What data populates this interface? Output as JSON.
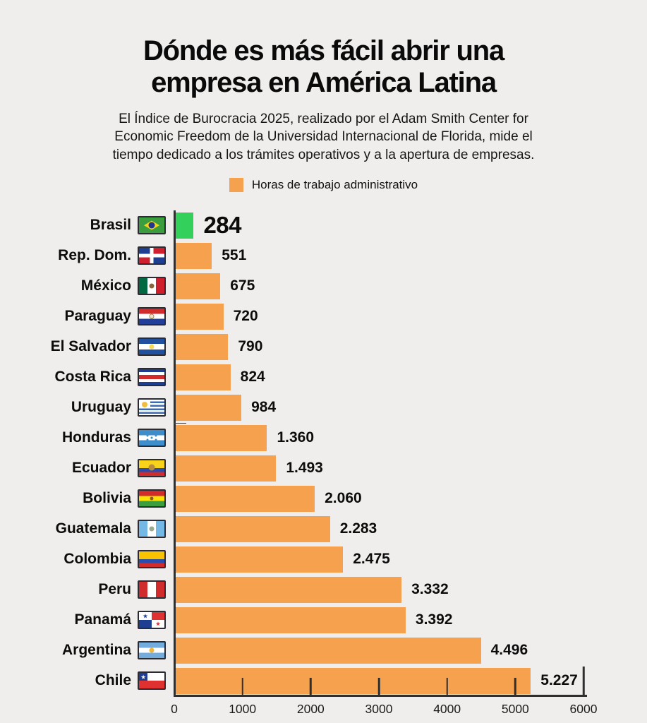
{
  "header": {
    "title": "Dónde es más fácil abrir una empresa en América Latina",
    "subtitle": "El Índice de Burocracia 2025, realizado por el Adam Smith Center for Economic Freedom de la Universidad Internacional de Florida, mide el tiempo dedicado a los trámites operativos y a la apertura de empresas."
  },
  "legend": {
    "label": "Horas de trabajo administrativo",
    "swatch_color": "#F6A14D"
  },
  "chart_data": {
    "type": "bar",
    "orientation": "horizontal",
    "title": "Dónde es más fácil abrir una empresa en América Latina",
    "legend": [
      "Horas de trabajo administrativo"
    ],
    "xlabel": "",
    "ylabel": "",
    "xlim": [
      0,
      6000
    ],
    "x_ticks": [
      0,
      1000,
      2000,
      3000,
      4000,
      5000,
      6000
    ],
    "grid": false,
    "bar_color": "#F6A14D",
    "highlight_color": "#33D15B",
    "axis_color": "#2F2F2F",
    "categories": [
      "Brasil",
      "Rep. Dom.",
      "México",
      "Paraguay",
      "El Salvador",
      "Costa Rica",
      "Uruguay",
      "Honduras",
      "Ecuador",
      "Bolivia",
      "Guatemala",
      "Colombia",
      "Peru",
      "Panamá",
      "Argentina",
      "Chile"
    ],
    "values": [
      284,
      551,
      675,
      720,
      790,
      824,
      984,
      1360,
      1493,
      2060,
      2283,
      2475,
      3332,
      3392,
      4496,
      5227
    ],
    "rows": [
      {
        "label": "Brasil",
        "flag": "brasil",
        "value": 284,
        "display": "284",
        "highlight": true
      },
      {
        "label": "Rep. Dom.",
        "flag": "republica-dominicana",
        "value": 551,
        "display": "551"
      },
      {
        "label": "México",
        "flag": "mexico",
        "value": 675,
        "display": "675"
      },
      {
        "label": "Paraguay",
        "flag": "paraguay",
        "value": 720,
        "display": "720"
      },
      {
        "label": "El Salvador",
        "flag": "el-salvador",
        "value": 790,
        "display": "790"
      },
      {
        "label": "Costa Rica",
        "flag": "costa-rica",
        "value": 824,
        "display": "824"
      },
      {
        "label": "Uruguay",
        "flag": "uruguay",
        "value": 984,
        "display": "984"
      },
      {
        "label": "Honduras",
        "flag": "honduras",
        "value": 1360,
        "display": "1.360"
      },
      {
        "label": "Ecuador",
        "flag": "ecuador",
        "value": 1493,
        "display": "1.493"
      },
      {
        "label": "Bolivia",
        "flag": "bolivia",
        "value": 2060,
        "display": "2.060"
      },
      {
        "label": "Guatemala",
        "flag": "guatemala",
        "value": 2283,
        "display": "2.283"
      },
      {
        "label": "Colombia",
        "flag": "colombia",
        "value": 2475,
        "display": "2.475"
      },
      {
        "label": "Peru",
        "flag": "peru",
        "value": 3332,
        "display": "3.332"
      },
      {
        "label": "Panamá",
        "flag": "panama",
        "value": 3392,
        "display": "3.392"
      },
      {
        "label": "Argentina",
        "flag": "argentina",
        "value": 4496,
        "display": "4.496"
      },
      {
        "label": "Chile",
        "flag": "chile",
        "value": 5227,
        "display": "5.227"
      }
    ]
  }
}
